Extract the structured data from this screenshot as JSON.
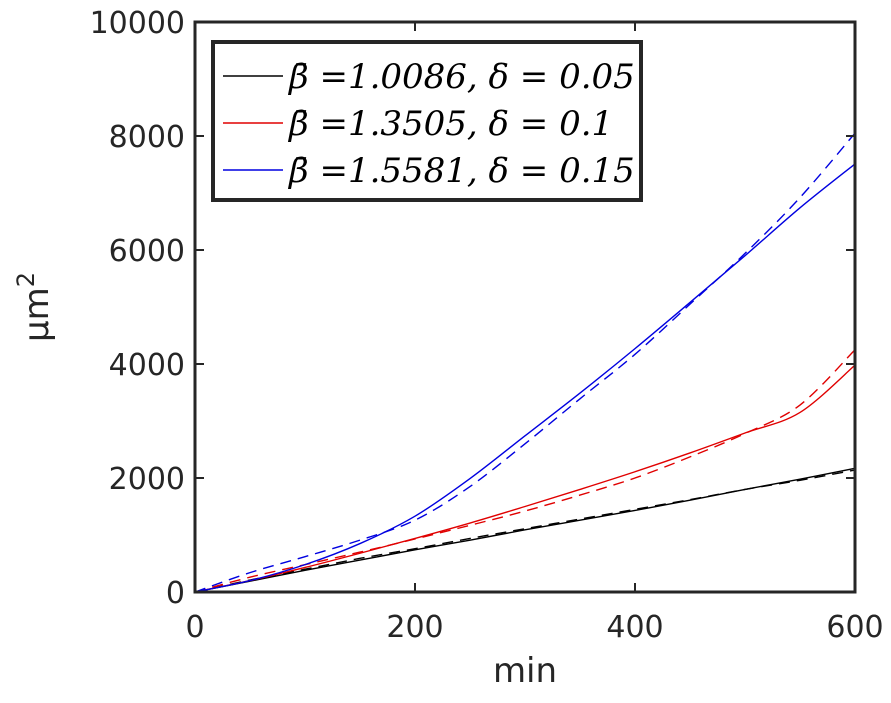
{
  "chart_data": {
    "type": "line",
    "xlabel": "min",
    "ylabel_base": "μm",
    "ylabel_sup": "2",
    "xlim": [
      0,
      600
    ],
    "ylim": [
      0,
      10000
    ],
    "xticks": [
      "0",
      "200",
      "400",
      "600"
    ],
    "yticks": [
      "0",
      "2000",
      "4000",
      "6000",
      "8000",
      "10000"
    ],
    "grid": false,
    "legend_placement": "top-left",
    "series": [
      {
        "name": "β̄ =1.0086, δ = 0.05",
        "color": "#000000",
        "solid": {
          "x": [
            0,
            50,
            100,
            150,
            200,
            250,
            300,
            350,
            400,
            450,
            500,
            550,
            600
          ],
          "y": [
            0,
            190,
            380,
            560,
            740,
            910,
            1090,
            1260,
            1430,
            1610,
            1800,
            1980,
            2170
          ]
        },
        "dashed": {
          "x": [
            0,
            50,
            100,
            150,
            200,
            250,
            300,
            350,
            400,
            450,
            500,
            550,
            600
          ],
          "y": [
            0,
            210,
            400,
            590,
            760,
            940,
            1110,
            1280,
            1450,
            1620,
            1800,
            1960,
            2140
          ]
        }
      },
      {
        "name": "β̄ =1.3505, δ = 0.1",
        "color": "#e00000",
        "solid": {
          "x": [
            0,
            50,
            100,
            150,
            200,
            250,
            300,
            350,
            400,
            450,
            500,
            550,
            600
          ],
          "y": [
            0,
            200,
            430,
            680,
            940,
            1210,
            1500,
            1800,
            2110,
            2440,
            2790,
            3150,
            3980
          ]
        },
        "dashed": {
          "x": [
            0,
            50,
            100,
            150,
            200,
            250,
            300,
            350,
            400,
            450,
            500,
            550,
            600
          ],
          "y": [
            0,
            260,
            480,
            700,
            930,
            1170,
            1420,
            1700,
            2000,
            2370,
            2780,
            3280,
            4250
          ]
        }
      },
      {
        "name": "β̄ =1.5581, δ = 0.15",
        "color": "#0000e0",
        "solid": {
          "x": [
            0,
            50,
            100,
            150,
            200,
            250,
            300,
            350,
            400,
            450,
            500,
            550,
            600
          ],
          "y": [
            0,
            200,
            480,
            850,
            1330,
            1990,
            2740,
            3490,
            4270,
            5080,
            5900,
            6740,
            7510
          ]
        },
        "dashed": {
          "x": [
            0,
            50,
            100,
            150,
            200,
            250,
            300,
            350,
            400,
            450,
            500,
            550,
            600
          ],
          "y": [
            0,
            340,
            620,
            910,
            1260,
            1850,
            2600,
            3390,
            4170,
            5050,
            5940,
            6920,
            8050
          ]
        }
      }
    ]
  }
}
